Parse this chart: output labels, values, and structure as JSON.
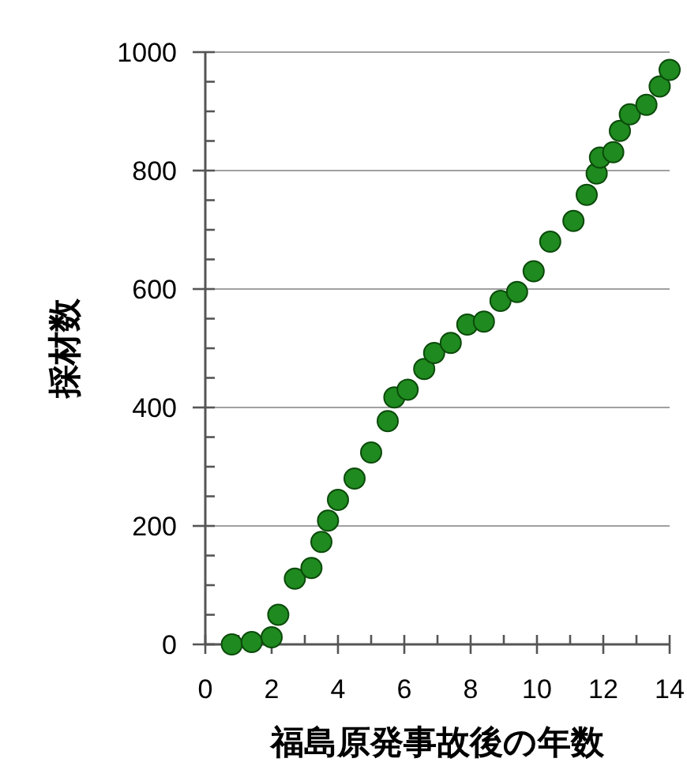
{
  "chart_data": {
    "type": "scatter",
    "xlabel": "福島原発事故後の年数",
    "ylabel": "採材数",
    "x": [
      0.8,
      1.4,
      2.0,
      2.2,
      2.7,
      3.2,
      3.5,
      3.7,
      4.0,
      4.5,
      5.0,
      5.5,
      5.7,
      6.1,
      6.6,
      6.9,
      7.4,
      7.9,
      8.4,
      8.9,
      9.4,
      9.9,
      10.4,
      11.1,
      11.5,
      11.8,
      11.9,
      12.3,
      12.5,
      12.8,
      13.3,
      13.7,
      14.0
    ],
    "values": [
      0,
      4,
      12,
      50,
      111,
      129,
      173,
      209,
      244,
      280,
      324,
      377,
      417,
      430,
      465,
      492,
      509,
      540,
      545,
      580,
      595,
      630,
      680,
      715,
      759,
      795,
      822,
      831,
      867,
      895,
      911,
      942,
      970
    ],
    "color": "#1f8a1f",
    "marker": "circle",
    "grid": "y",
    "xlim": [
      0,
      14
    ],
    "ylim": [
      0,
      1000
    ],
    "xticks": [
      0,
      {
        "value": 1,
        "label": null
      },
      2,
      {
        "value": 3,
        "label": null
      },
      4,
      {
        "value": 5,
        "label": null
      },
      6,
      {
        "value": 7,
        "label": null
      },
      8,
      {
        "value": 9,
        "label": null
      },
      10,
      {
        "value": 11,
        "label": null
      },
      12,
      {
        "value": 13,
        "label": null
      },
      14
    ],
    "yticks": [
      0,
      {
        "value": 50,
        "label": null
      },
      {
        "value": 100,
        "label": null
      },
      {
        "value": 150,
        "label": null
      },
      200,
      {
        "value": 250,
        "label": null
      },
      {
        "value": 300,
        "label": null
      },
      {
        "value": 350,
        "label": null
      },
      400,
      {
        "value": 450,
        "label": null
      },
      {
        "value": 500,
        "label": null
      },
      {
        "value": 550,
        "label": null
      },
      600,
      {
        "value": 650,
        "label": null
      },
      {
        "value": 700,
        "label": null
      },
      {
        "value": 750,
        "label": null
      },
      800,
      {
        "value": 850,
        "label": null
      },
      {
        "value": 900,
        "label": null
      },
      {
        "value": 950,
        "label": null
      },
      1000
    ]
  }
}
